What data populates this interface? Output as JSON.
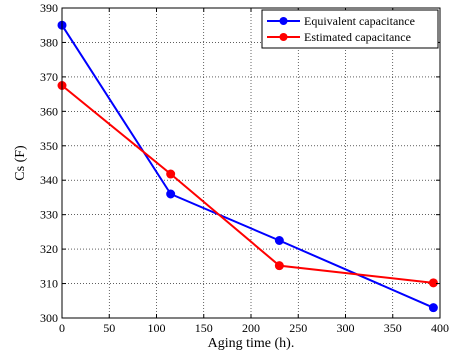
{
  "chart_data": {
    "type": "line",
    "xlabel": "Aging time (h).",
    "ylabel": "Cs (F)",
    "xlim": [
      0,
      400
    ],
    "ylim": [
      300,
      390
    ],
    "xticks": [
      "0",
      "50",
      "100",
      "150",
      "200",
      "250",
      "300",
      "350",
      "400"
    ],
    "yticks": [
      "300",
      "310",
      "320",
      "330",
      "340",
      "350",
      "360",
      "370",
      "380",
      "390"
    ],
    "grid": true,
    "grid_style": "dotted",
    "legend_position": "top-right",
    "series": [
      {
        "name": "Equivalent capacitance",
        "color": "#0000ff",
        "marker": "circle",
        "x": [
          0,
          115,
          230,
          393
        ],
        "y": [
          385,
          336,
          322.5,
          303
        ]
      },
      {
        "name": "Estimated capacitance",
        "color": "#ff0000",
        "marker": "circle",
        "x": [
          0,
          115,
          230,
          393
        ],
        "y": [
          367.5,
          341.8,
          315.2,
          310.2
        ]
      }
    ]
  }
}
